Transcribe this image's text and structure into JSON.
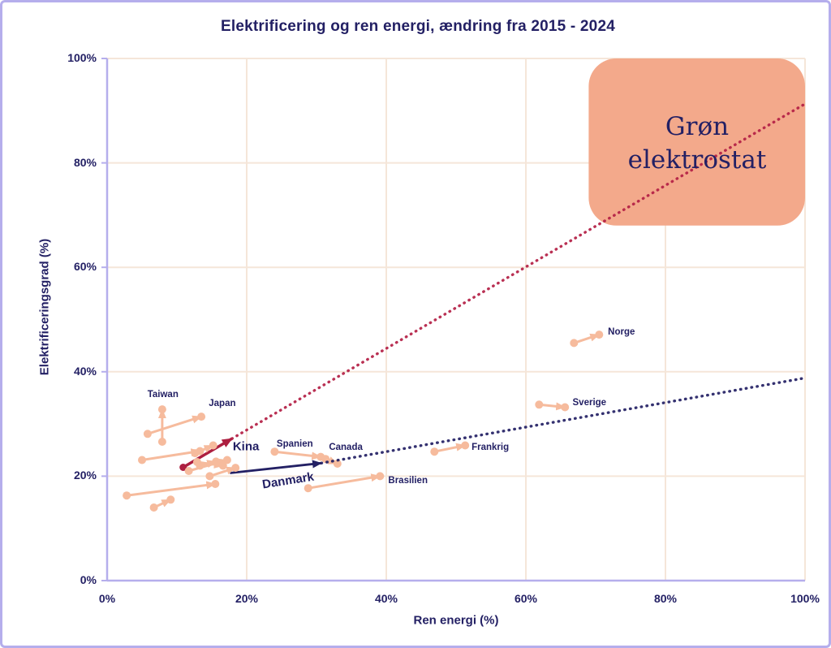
{
  "colors": {
    "background": "#ffffff",
    "frame": "#b5aeec",
    "grid": "#f5e6d9",
    "navy": "#232064",
    "crimson": "#ad1f40",
    "crimson_dotted": "#b41f45",
    "salmon": "#f6bb9d",
    "box_fill": "#f3a98b"
  },
  "chart_data": {
    "type": "scatter",
    "title": "Elektrificering og ren energi, ændring fra 2015 - 2024",
    "xlabel": "Ren energi (%)",
    "ylabel": "Elektrificeringsgrad (%)",
    "xlim": [
      0,
      100
    ],
    "ylim": [
      0,
      100
    ],
    "grid": true,
    "ticks_percent": [
      0,
      20,
      40,
      60,
      80,
      100
    ],
    "x_tick_labels": [
      "0%",
      "20%",
      "40%",
      "60%",
      "80%",
      "100%"
    ],
    "y_tick_labels": [
      "0%",
      "20%",
      "40%",
      "60%",
      "80%",
      "100%"
    ],
    "annotation_box": {
      "label": "Grøn elektrostat",
      "x_range": [
        69,
        100
      ],
      "y_range": [
        68,
        100
      ]
    },
    "series_note": "each country: position 2015 (from) -> position 2024 (to), values in % [ren energi, elektrificeringsgrad]; trend_to = dotted extrapolation endpoint",
    "countries": [
      {
        "name": "Taiwan",
        "from": [
          7.9,
          26.6
        ],
        "to": [
          7.9,
          32.8
        ],
        "style": "salmon",
        "label_at": [
          8.0,
          35.6
        ]
      },
      {
        "name": "Japan",
        "from": [
          5.8,
          28.1
        ],
        "to": [
          13.5,
          31.4
        ],
        "style": "salmon",
        "label_at": [
          16.5,
          33.9
        ]
      },
      {
        "name": "Kina",
        "from": [
          10.9,
          21.7
        ],
        "to": [
          17.9,
          27.2
        ],
        "style": "crimson",
        "label_at": [
          19.9,
          25.6
        ],
        "trend_to": [
          100,
          91.3
        ]
      },
      {
        "name": "Danmark",
        "from": [
          17.6,
          20.6
        ],
        "to": [
          30.7,
          22.5
        ],
        "style": "navy",
        "label_at": [
          25.9,
          19.2
        ],
        "label_rotation": -9,
        "trend_to": [
          100,
          38.8
        ]
      },
      {
        "name": "Spanien",
        "from": [
          24.0,
          24.7
        ],
        "to": [
          30.6,
          23.7
        ],
        "style": "salmon",
        "label_at": [
          26.9,
          26.1
        ]
      },
      {
        "name": "Canada",
        "from": [
          31.3,
          23.3
        ],
        "to": [
          33.0,
          22.4
        ],
        "style": "salmon",
        "label_at": [
          34.2,
          25.5
        ]
      },
      {
        "name": "Brasilien",
        "from": [
          28.8,
          17.7
        ],
        "to": [
          39.1,
          20.0
        ],
        "style": "salmon",
        "label_at": [
          43.1,
          19.1
        ]
      },
      {
        "name": "Frankrig",
        "from": [
          46.9,
          24.7
        ],
        "to": [
          51.3,
          25.9
        ],
        "style": "salmon",
        "label_at": [
          54.9,
          25.5
        ]
      },
      {
        "name": "Sverige",
        "from": [
          61.9,
          33.7
        ],
        "to": [
          65.6,
          33.2
        ],
        "style": "salmon",
        "label_at": [
          69.1,
          34.0
        ]
      },
      {
        "name": "Norge",
        "from": [
          66.9,
          45.5
        ],
        "to": [
          70.5,
          47.1
        ],
        "style": "salmon",
        "label_at": [
          73.7,
          47.6
        ]
      },
      {
        "name": "",
        "from": [
          5.0,
          23.1
        ],
        "to": [
          13.3,
          24.8
        ],
        "style": "salmon"
      },
      {
        "name": "",
        "from": [
          2.8,
          16.3
        ],
        "to": [
          15.5,
          18.5
        ],
        "style": "salmon"
      },
      {
        "name": "",
        "from": [
          6.7,
          14.0
        ],
        "to": [
          9.1,
          15.5
        ],
        "style": "salmon"
      },
      {
        "name": "",
        "from": [
          12.6,
          24.4
        ],
        "to": [
          15.2,
          25.9
        ],
        "style": "salmon"
      },
      {
        "name": "",
        "from": [
          11.7,
          21.0
        ],
        "to": [
          17.2,
          23.1
        ],
        "style": "salmon"
      },
      {
        "name": "",
        "from": [
          14.7,
          20.0
        ],
        "to": [
          18.4,
          21.6
        ],
        "style": "salmon"
      },
      {
        "name": "",
        "from": [
          13.3,
          22.0
        ],
        "to": [
          15.6,
          22.8
        ],
        "style": "salmon"
      },
      {
        "name": "",
        "from": [
          12.9,
          22.7
        ],
        "to": [
          16.6,
          22.0
        ],
        "style": "salmon"
      }
    ]
  }
}
